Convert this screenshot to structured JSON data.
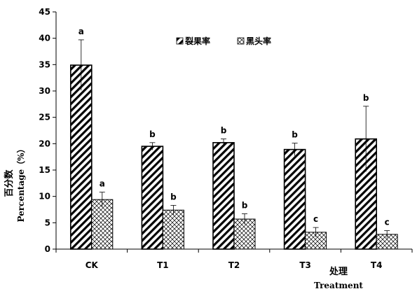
{
  "chart_data": {
    "type": "bar",
    "categories": [
      "CK",
      "T1",
      "T2",
      "T3",
      "T4"
    ],
    "series": [
      {
        "name": "裂果率",
        "pattern": "diagonal-hatch",
        "values": [
          34.9,
          19.5,
          20.2,
          18.9,
          20.9
        ],
        "errors": [
          4.8,
          0.7,
          0.7,
          1.2,
          6.2
        ],
        "significance": [
          "a",
          "b",
          "b",
          "b",
          "b"
        ]
      },
      {
        "name": "黑头率",
        "pattern": "crosshatch",
        "values": [
          9.4,
          7.4,
          5.7,
          3.2,
          2.8
        ],
        "errors": [
          1.4,
          0.9,
          1.0,
          0.9,
          0.7
        ],
        "significance": [
          "a",
          "b",
          "b",
          "c",
          "c"
        ]
      }
    ],
    "ylim": [
      0,
      45
    ],
    "yticks": [
      0,
      5,
      10,
      15,
      20,
      25,
      30,
      35,
      40,
      45
    ],
    "ylabel_cn": "百分数",
    "ylabel_en": "Percentage（%）",
    "xlabel_cn": "处理",
    "xlabel_en": "Treatment",
    "legend_position": "top-right",
    "grid": false
  }
}
